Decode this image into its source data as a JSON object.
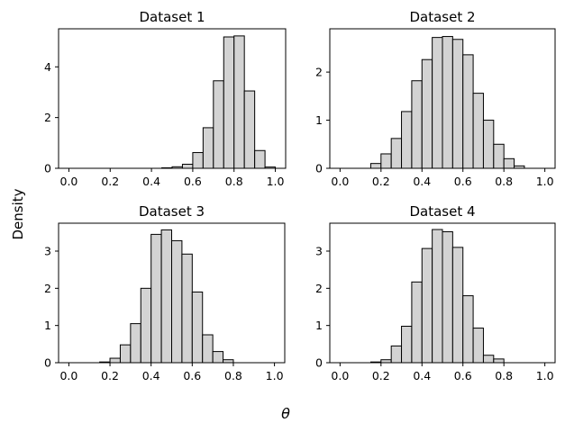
{
  "figure": {
    "ylabel": "Density",
    "xlabel": "θ"
  },
  "chart_data": [
    {
      "type": "bar",
      "title": "Dataset 1",
      "bin_edges": [
        0.0,
        0.05,
        0.1,
        0.15,
        0.2,
        0.25,
        0.3,
        0.35,
        0.4,
        0.45,
        0.5,
        0.55,
        0.6,
        0.65,
        0.7,
        0.75,
        0.8,
        0.85,
        0.9,
        0.95,
        1.0
      ],
      "values": [
        0,
        0,
        0,
        0,
        0,
        0,
        0,
        0,
        0,
        0.02,
        0.06,
        0.16,
        0.62,
        1.6,
        3.45,
        5.18,
        5.22,
        3.05,
        0.7,
        0.05
      ],
      "xlim": [
        -0.05,
        1.05
      ],
      "ylim": [
        0,
        5.5
      ],
      "xticks": [
        "0.0",
        "0.2",
        "0.4",
        "0.6",
        "0.8",
        "1.0"
      ],
      "yticks": [
        "0",
        "2",
        "4"
      ],
      "bar_color": "#d3d3d3",
      "edge_color": "#000000"
    },
    {
      "type": "bar",
      "title": "Dataset 2",
      "bin_edges": [
        0.0,
        0.05,
        0.1,
        0.15,
        0.2,
        0.25,
        0.3,
        0.35,
        0.4,
        0.45,
        0.5,
        0.55,
        0.6,
        0.65,
        0.7,
        0.75,
        0.8,
        0.85,
        0.9,
        0.95,
        1.0
      ],
      "values": [
        0,
        0,
        0,
        0.1,
        0.3,
        0.62,
        1.18,
        1.82,
        2.26,
        2.72,
        2.74,
        2.68,
        2.36,
        1.56,
        1.0,
        0.5,
        0.2,
        0.05,
        0,
        0
      ],
      "xlim": [
        -0.05,
        1.05
      ],
      "ylim": [
        0,
        2.9
      ],
      "xticks": [
        "0.0",
        "0.2",
        "0.4",
        "0.6",
        "0.8",
        "1.0"
      ],
      "yticks": [
        "0",
        "1",
        "2"
      ],
      "bar_color": "#d3d3d3",
      "edge_color": "#000000"
    },
    {
      "type": "bar",
      "title": "Dataset 3",
      "bin_edges": [
        0.0,
        0.05,
        0.1,
        0.15,
        0.2,
        0.25,
        0.3,
        0.35,
        0.4,
        0.45,
        0.5,
        0.55,
        0.6,
        0.65,
        0.7,
        0.75,
        0.8,
        0.85,
        0.9,
        0.95,
        1.0
      ],
      "values": [
        0,
        0,
        0,
        0.02,
        0.12,
        0.48,
        1.05,
        2.0,
        3.45,
        3.57,
        3.28,
        2.92,
        1.9,
        0.75,
        0.3,
        0.08,
        0,
        0,
        0,
        0
      ],
      "xlim": [
        -0.05,
        1.05
      ],
      "ylim": [
        0,
        3.75
      ],
      "xticks": [
        "0.0",
        "0.2",
        "0.4",
        "0.6",
        "0.8",
        "1.0"
      ],
      "yticks": [
        "0",
        "1",
        "2",
        "3"
      ],
      "bar_color": "#d3d3d3",
      "edge_color": "#000000"
    },
    {
      "type": "bar",
      "title": "Dataset 4",
      "bin_edges": [
        0.0,
        0.05,
        0.1,
        0.15,
        0.2,
        0.25,
        0.3,
        0.35,
        0.4,
        0.45,
        0.5,
        0.55,
        0.6,
        0.65,
        0.7,
        0.75,
        0.8,
        0.85,
        0.9,
        0.95,
        1.0
      ],
      "values": [
        0,
        0,
        0,
        0.02,
        0.08,
        0.45,
        0.98,
        2.17,
        3.07,
        3.58,
        3.52,
        3.1,
        1.8,
        0.93,
        0.2,
        0.1,
        0,
        0,
        0,
        0
      ],
      "xlim": [
        -0.05,
        1.05
      ],
      "ylim": [
        0,
        3.75
      ],
      "xticks": [
        "0.0",
        "0.2",
        "0.4",
        "0.6",
        "0.8",
        "1.0"
      ],
      "yticks": [
        "0",
        "1",
        "2",
        "3"
      ],
      "bar_color": "#d3d3d3",
      "edge_color": "#000000"
    }
  ]
}
